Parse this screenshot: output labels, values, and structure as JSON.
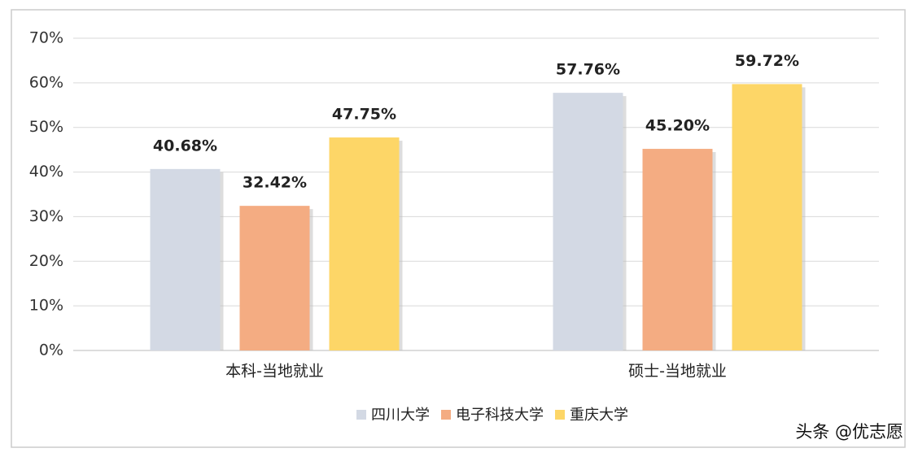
{
  "chart_data": {
    "type": "bar",
    "categories": [
      "本科-当地就业",
      "硕士-当地就业"
    ],
    "series": [
      {
        "name": "四川大学",
        "color": "#d3d9e4",
        "values": [
          40.68,
          57.76
        ],
        "value_labels": [
          "40.68%",
          "57.76%"
        ]
      },
      {
        "name": "电子科技大学",
        "color": "#f4ac82",
        "values": [
          32.42,
          45.2
        ],
        "value_labels": [
          "32.42%",
          "45.20%"
        ]
      },
      {
        "name": "重庆大学",
        "color": "#fdd667",
        "values": [
          47.75,
          59.72
        ],
        "value_labels": [
          "47.75%",
          "59.72%"
        ]
      }
    ],
    "ylim": [
      0,
      70
    ],
    "yticks": [
      {
        "value": 0,
        "label": "0%"
      },
      {
        "value": 10,
        "label": "10%"
      },
      {
        "value": 20,
        "label": "20%"
      },
      {
        "value": 30,
        "label": "30%"
      },
      {
        "value": 40,
        "label": "40%"
      },
      {
        "value": 50,
        "label": "50%"
      },
      {
        "value": 60,
        "label": "60%"
      },
      {
        "value": 70,
        "label": "70%"
      }
    ],
    "grid": true,
    "legend": "bottom",
    "caption": "头条 @优志愿"
  }
}
